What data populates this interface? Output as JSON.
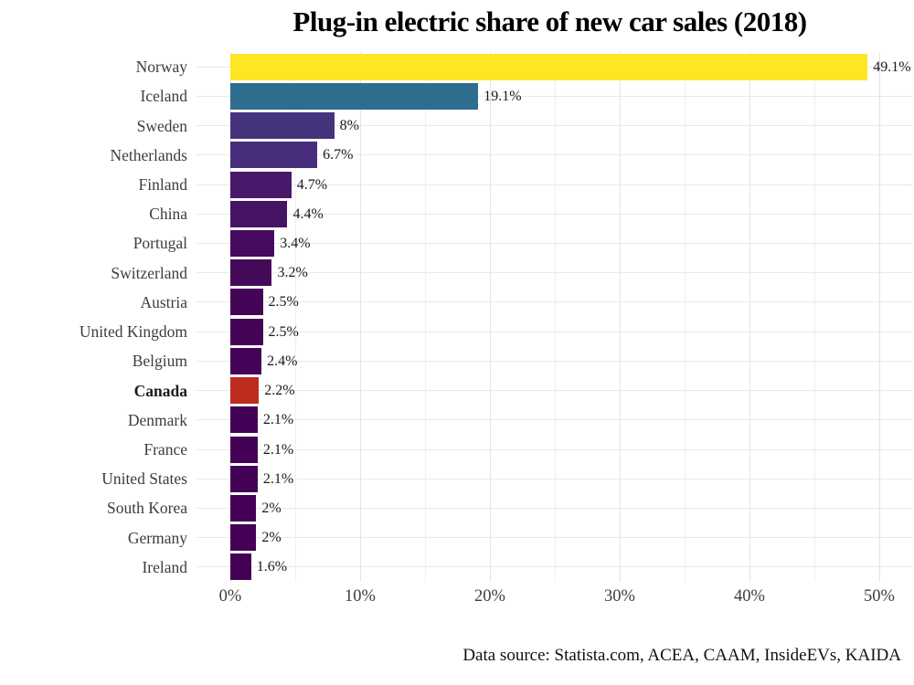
{
  "chart_data": {
    "type": "bar",
    "orientation": "horizontal",
    "title": "Plug-in electric share of new car sales (2018)",
    "caption": "Data source: Statista.com, ACEA, CAAM, InsideEVs, KAIDA",
    "categories": [
      "Norway",
      "Iceland",
      "Sweden",
      "Netherlands",
      "Finland",
      "China",
      "Portugal",
      "Switzerland",
      "Austria",
      "United Kingdom",
      "Belgium",
      "Canada",
      "Denmark",
      "France",
      "United States",
      "South Korea",
      "Germany",
      "Ireland"
    ],
    "values": [
      49.1,
      19.1,
      8,
      6.7,
      4.7,
      4.4,
      3.4,
      3.2,
      2.5,
      2.5,
      2.4,
      2.2,
      2.1,
      2.1,
      2.1,
      2,
      2,
      1.6
    ],
    "value_labels": [
      "49.1%",
      "19.1%",
      "8%",
      "6.7%",
      "4.7%",
      "4.4%",
      "3.4%",
      "3.2%",
      "2.5%",
      "2.5%",
      "2.4%",
      "2.2%",
      "2.1%",
      "2.1%",
      "2.1%",
      "2%",
      "2%",
      "1.6%"
    ],
    "bar_colors": [
      "#FDE725",
      "#2E6D8E",
      "#46337E",
      "#472D7B",
      "#48186A",
      "#471365",
      "#460B5E",
      "#45095A",
      "#440556",
      "#440556",
      "#440357",
      "#BE2B1F",
      "#440256",
      "#440256",
      "#440256",
      "#440155",
      "#440155",
      "#440154"
    ],
    "highlight_category": "Canada",
    "highlight_color": "#BE2B1F",
    "xlim": [
      0,
      50
    ],
    "x_tick_values": [
      0,
      10,
      20,
      30,
      40,
      50
    ],
    "x_tick_labels": [
      "0%",
      "10%",
      "20%",
      "30%",
      "40%",
      "50%"
    ],
    "minor_tick_step": 5,
    "grid": "on",
    "legend": "none",
    "theme": {
      "background_color": "#ffffff",
      "major_grid_color": "#e3e3e3",
      "minor_grid_color": "#f0f0f0",
      "row_grid_color": "#e9e9e9",
      "title_color": "#000000",
      "axis_text_color": "#3d3d3d",
      "value_label_color": "#1a1a1a"
    }
  }
}
